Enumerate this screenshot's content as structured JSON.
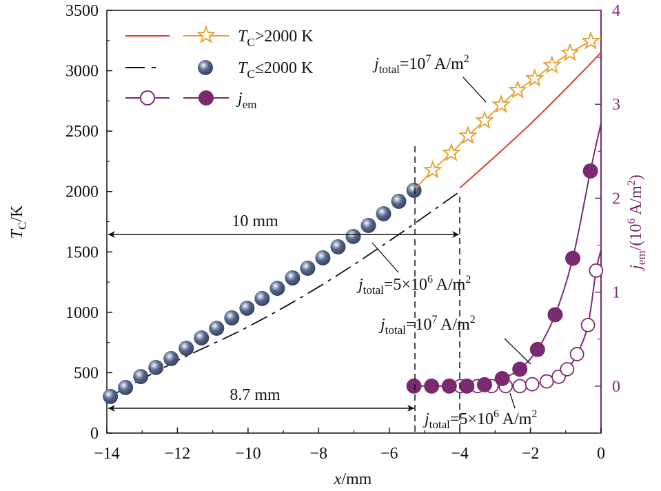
{
  "chart_data": {
    "type": "line",
    "xlabel": {
      "var": "x",
      "unit": "/mm"
    },
    "ylabel": {
      "var": "T",
      "sub": "C",
      "unit": "/K"
    },
    "y2label": {
      "var": "j",
      "sub": "em",
      "unit": "/(10",
      "sup": "6",
      "unit2": " A/m",
      "sup2": "2",
      "close": ")"
    },
    "xlim": [
      -14,
      0
    ],
    "ylim": [
      0,
      3500
    ],
    "y2lim": [
      -0.5,
      4
    ],
    "xticks": [
      "−14",
      "−12",
      "−10",
      "−8",
      "−6",
      "−4",
      "−2",
      "0"
    ],
    "xtick_values": [
      -14,
      -12,
      -10,
      -8,
      -6,
      -4,
      -2,
      0
    ],
    "yticks": [
      0,
      500,
      1000,
      1500,
      2000,
      2500,
      3000,
      3500
    ],
    "y2ticks": [
      0,
      1,
      2,
      3,
      4
    ],
    "legend": {
      "position": "top-left",
      "entries": [
        {
          "label_pre": "T",
          "sub": "C",
          "label": ">2000 K"
        },
        {
          "label_pre": "T",
          "sub": "C",
          "label": "≤2000 K"
        },
        {
          "label_pre": "j",
          "sub": "em",
          "label": ""
        }
      ]
    },
    "colors": {
      "red": "#e03a2f",
      "orange": "#e8a33a",
      "blue": "#4d5f82",
      "purple": "#7a2a6e"
    },
    "series": [
      {
        "name": "T_C>2000 K, j_total=5×10^6 A/m^2 (line)",
        "axis": "left",
        "style": "red-solid",
        "x": [
          -4,
          -3,
          -2,
          -1,
          0
        ],
        "y": [
          2030,
          2290,
          2560,
          2850,
          3150
        ]
      },
      {
        "name": "T_C<=2000 K, j_total=5×10^6 A/m^2 (dash-dot)",
        "axis": "left",
        "style": "black-dashdot",
        "x": [
          -14,
          -12,
          -10,
          -8,
          -6,
          -4
        ],
        "y": [
          290,
          600,
          880,
          1210,
          1590,
          2000
        ]
      },
      {
        "name": "T_C<=2000 K, j_total=10^7 A/m^2 (spheres)",
        "axis": "left",
        "style": "blue-sphere",
        "x": [
          -13.9,
          -13.47,
          -13.04,
          -12.61,
          -12.18,
          -11.75,
          -11.32,
          -10.89,
          -10.46,
          -10.03,
          -9.6,
          -9.17,
          -8.74,
          -8.31,
          -7.88,
          -7.45,
          -7.02,
          -6.59,
          -6.16,
          -5.73,
          -5.3
        ],
        "y": [
          303,
          377,
          468,
          543,
          617,
          702,
          788,
          868,
          954,
          1034,
          1114,
          1199,
          1285,
          1365,
          1451,
          1542,
          1628,
          1719,
          1816,
          1919,
          2010
        ]
      },
      {
        "name": "T_C>2000 K, j_total=10^7 A/m^2 (stars)",
        "axis": "left",
        "style": "orange-star",
        "x": [
          -5.3,
          -4.77,
          -4.24,
          -3.77,
          -3.3,
          -2.83,
          -2.36,
          -1.88,
          -1.39,
          -0.88,
          -0.29,
          0
        ],
        "y": [
          2010,
          2176,
          2319,
          2461,
          2587,
          2718,
          2838,
          2935,
          3044,
          3147,
          3244,
          3270
        ],
        "marker_from": 1,
        "marker_to": 10
      },
      {
        "name": "j_em, j_total=10^7 A/m^2",
        "axis": "right",
        "style": "purple-filled",
        "x": [
          -5.3,
          -4.8,
          -4.3,
          -3.8,
          -3.3,
          -2.8,
          -2.3,
          -1.8,
          -1.3,
          -0.8,
          -0.3,
          0
        ],
        "y": [
          0,
          0,
          0,
          0,
          0.015,
          0.08,
          0.18,
          0.39,
          0.76,
          1.36,
          2.29,
          2.8
        ],
        "marker_to": 10
      },
      {
        "name": "j_em, j_total=5×10^6 A/m^2",
        "axis": "right",
        "style": "purple-open",
        "x": [
          -3.98,
          -3.5,
          -3.1,
          -2.7,
          -2.3,
          -1.95,
          -1.54,
          -1.2,
          -0.96,
          -0.68,
          -0.37,
          -0.14,
          0
        ],
        "y": [
          0,
          0,
          0,
          0,
          0,
          0.02,
          0.05,
          0.1,
          0.18,
          0.34,
          0.65,
          1.23,
          1.45
        ],
        "marker_to": 11
      }
    ],
    "annotations": {
      "a1": {
        "pre": "j",
        "sub": "total",
        "mid": "=10",
        "sup": "7",
        "post": " A/m",
        "sup2": "2"
      },
      "a2": {
        "pre": "j",
        "sub": "total",
        "mid": "=5×10",
        "sup": "6",
        "post": " A/m",
        "sup2": "2"
      },
      "a3": {
        "pre": "j",
        "sub": "total",
        "mid": "=10",
        "sup": "7",
        "post": " A/m",
        "sup2": "2"
      },
      "a4": {
        "pre": "j",
        "sub": "total",
        "mid": "=5×10",
        "sup": "6",
        "post": " A/m",
        "sup2": "2"
      },
      "dim1": "10 mm",
      "dim2": "8.7 mm"
    }
  }
}
